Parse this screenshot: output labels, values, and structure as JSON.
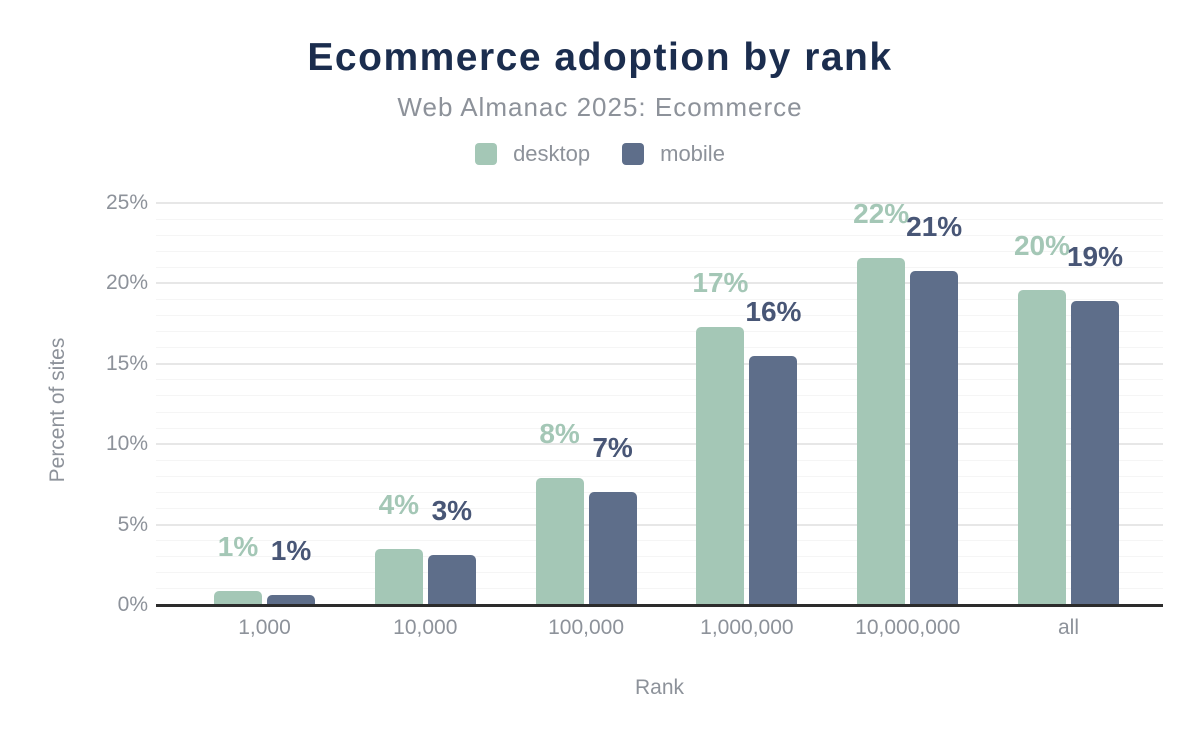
{
  "header": {
    "title": "Ecommerce adoption by rank",
    "subtitle": "Web Almanac 2025: Ecommerce"
  },
  "chart_data": {
    "type": "bar",
    "title": "Ecommerce adoption by rank",
    "subtitle": "Web Almanac 2025: Ecommerce",
    "categories": [
      "1,000",
      "10,000",
      "100,000",
      "1,000,000",
      "10,000,000",
      "all"
    ],
    "series": [
      {
        "name": "desktop",
        "color": "#a4c7b6",
        "label_color": "#a4c7b6",
        "values": [
          0.9,
          3.5,
          7.9,
          17.3,
          21.6,
          19.6
        ],
        "labels": [
          "1%",
          "4%",
          "8%",
          "17%",
          "22%",
          "20%"
        ]
      },
      {
        "name": "mobile",
        "color": "#5e6e8a",
        "label_color": "#485676",
        "values": [
          0.6,
          3.1,
          7.0,
          15.5,
          20.8,
          18.9
        ],
        "labels": [
          "1%",
          "3%",
          "7%",
          "16%",
          "21%",
          "19%"
        ]
      }
    ],
    "xlabel": "Rank",
    "ylabel": "Percent of sites",
    "ylim": [
      0,
      25
    ],
    "yticks": [
      {
        "value": 0,
        "label": "0%"
      },
      {
        "value": 5,
        "label": "5%"
      },
      {
        "value": 10,
        "label": "10%"
      },
      {
        "value": 15,
        "label": "15%"
      },
      {
        "value": 20,
        "label": "20%"
      },
      {
        "value": 25,
        "label": "25%"
      }
    ],
    "grid": {
      "minor_step": 1,
      "major_step": 5,
      "shown": true
    },
    "legend_position": "top",
    "colors": {
      "background": "#ffffff",
      "title": "#1b2d4e",
      "muted_text": "#8d929a",
      "axis_line": "#2c2c2c",
      "grid_major": "#e7e7e7",
      "grid_minor": "#f5f5f5",
      "desktop": "#a4c7b6",
      "mobile": "#5e6e8a"
    }
  }
}
